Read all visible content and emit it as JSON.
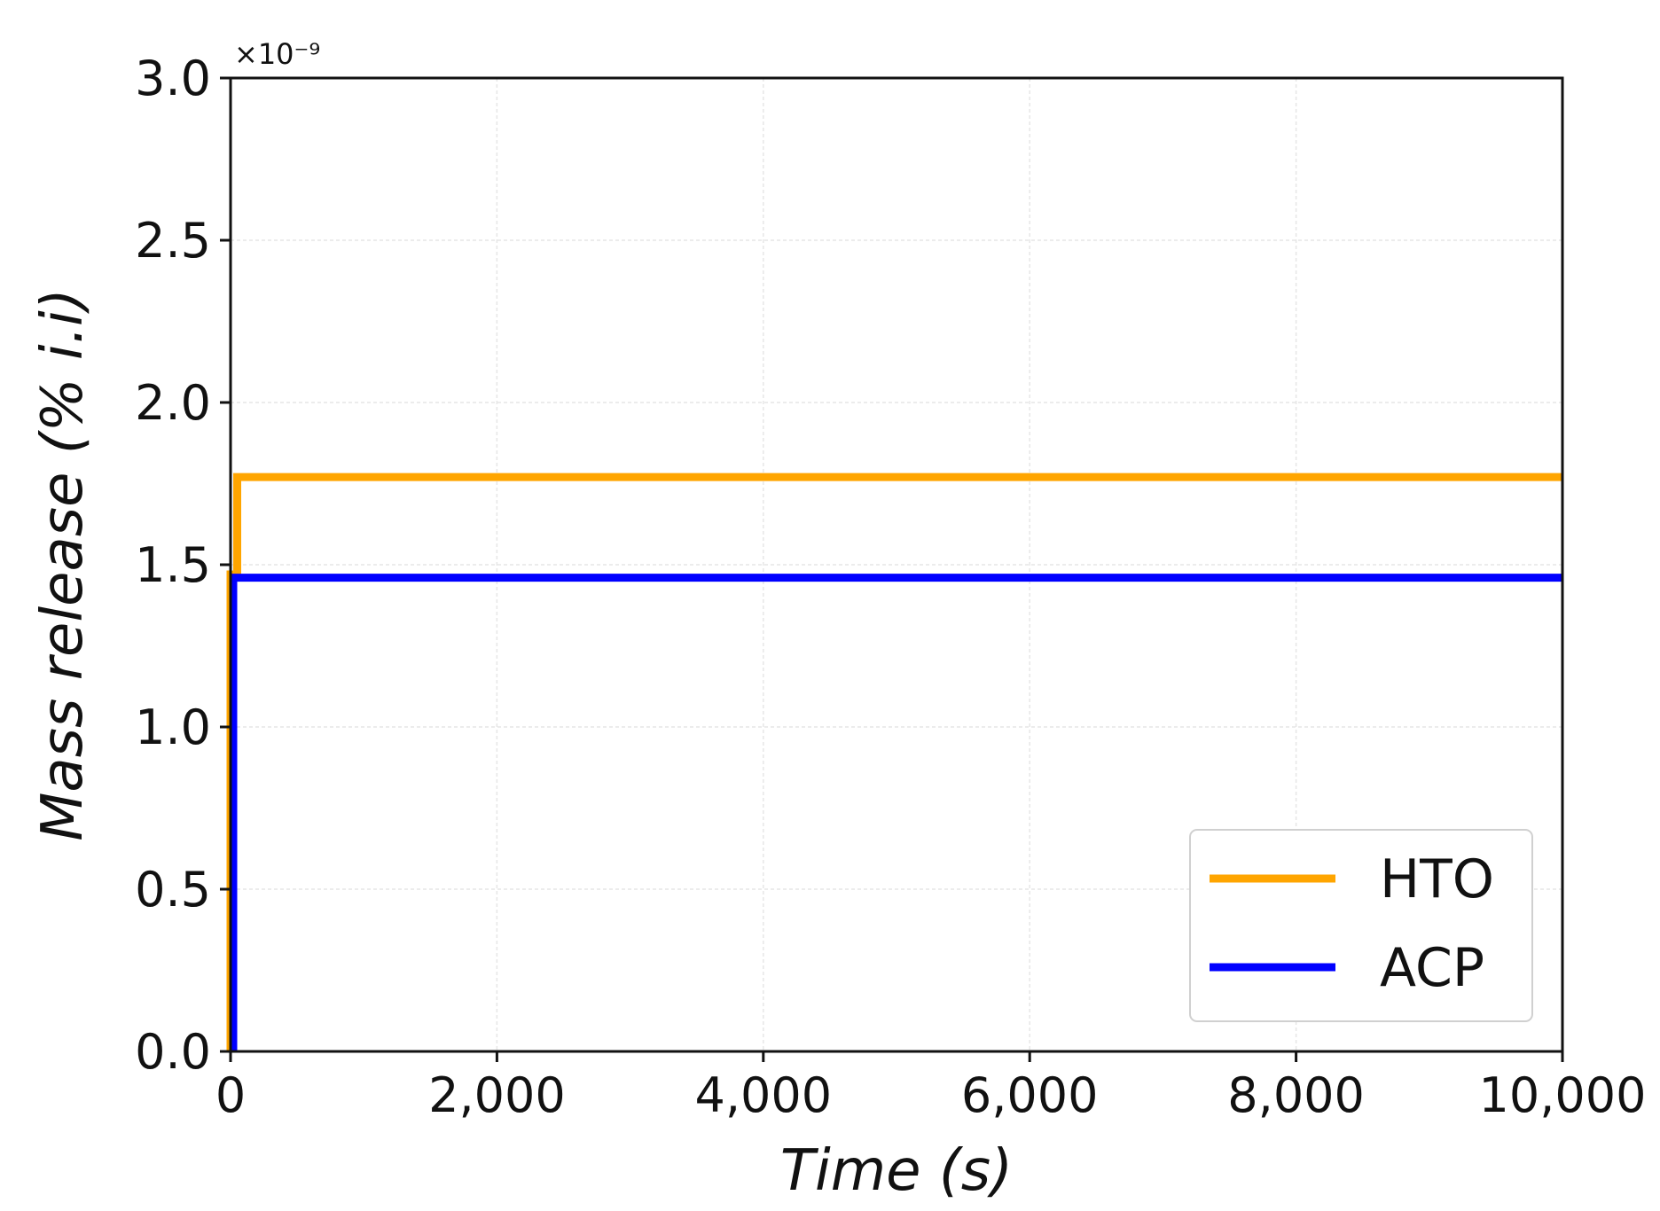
{
  "chart_data": {
    "type": "line",
    "xlabel": "Time (s)",
    "ylabel": "Mass release (% i.i)",
    "y_offset_label": "×10⁻⁹",
    "xlim": [
      0,
      10000
    ],
    "ylim": [
      0,
      3.0
    ],
    "x_ticks": [
      0,
      2000,
      4000,
      6000,
      8000,
      10000
    ],
    "x_tick_labels": [
      "0",
      "2,000",
      "4,000",
      "6,000",
      "8,000",
      "10,000"
    ],
    "y_ticks": [
      0,
      0.5,
      1.0,
      1.5,
      2.0,
      2.5,
      3.0
    ],
    "y_tick_labels": [
      "0.0",
      "0.5",
      "1.0",
      "1.5",
      "2.0",
      "2.5",
      "3.0"
    ],
    "grid": true,
    "legend_position": "bottom-right",
    "series": [
      {
        "name": "HTO",
        "color": "#FFA500",
        "x": [
          0,
          0,
          50,
          50,
          10000
        ],
        "y": [
          0,
          1.47,
          1.47,
          1.77,
          1.77
        ]
      },
      {
        "name": "ACP",
        "color": "#0000FF",
        "x": [
          20,
          20,
          10000
        ],
        "y": [
          0,
          1.46,
          1.46
        ]
      }
    ]
  }
}
